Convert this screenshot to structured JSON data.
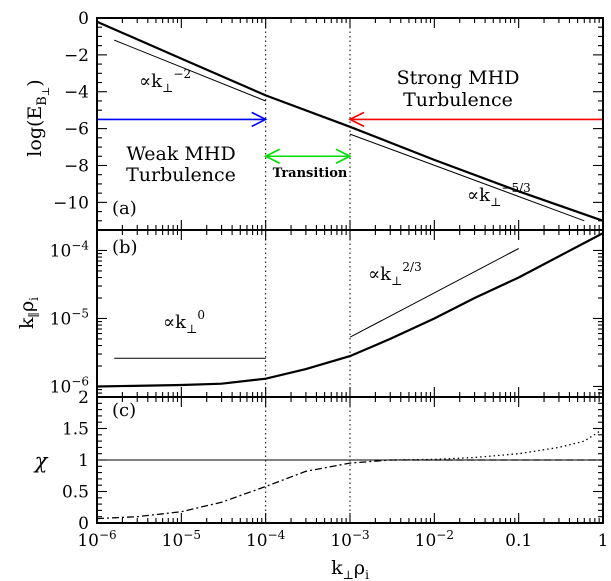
{
  "chart_data": [
    {
      "panel": "(a)",
      "type": "line",
      "ylabel": "log(E_B⊥)",
      "xscale": "log",
      "xlim": [
        1e-06,
        1
      ],
      "ylim": [
        -11.5,
        0
      ],
      "yticks": [
        -10,
        -8,
        -6,
        -4,
        -2,
        0
      ],
      "series": [
        {
          "style": "solid-thick",
          "x": [
            1e-06,
            1e-05,
            0.0001,
            0.001,
            0.01,
            0.1,
            1
          ],
          "y": [
            -0.2,
            -2.2,
            -4.2,
            -5.9,
            -7.7,
            -9.4,
            -11.0
          ]
        },
        {
          "style": "thin-reference",
          "x": [
            1.6e-06,
            0.0001
          ],
          "y": [
            -1.2,
            -4.5
          ]
        },
        {
          "style": "thin-reference",
          "x": [
            0.001,
            0.6
          ],
          "y": [
            -6.3,
            -11.0
          ]
        }
      ],
      "vlines": [
        0.0001,
        0.001
      ],
      "annotations": [
        {
          "id": "k2",
          "prefix": "∝k",
          "sub": "⊥",
          "sup": "−2"
        },
        {
          "id": "k53",
          "prefix": "∝k",
          "sub": "⊥",
          "sup": "−5/3"
        },
        {
          "id": "strong1",
          "text": "Strong MHD",
          "color": "#ff0000"
        },
        {
          "id": "strong2",
          "text": "Turbulence",
          "color": "#ff0000"
        },
        {
          "id": "weak1",
          "text": "Weak MHD",
          "color": "#0000ff"
        },
        {
          "id": "weak2",
          "text": "Turbulence",
          "color": "#0000ff"
        },
        {
          "id": "trans",
          "text": "Transition",
          "color": "#00dd00"
        }
      ],
      "arrows": [
        {
          "color": "#0000ff",
          "x": [
            1e-06,
            0.0001
          ],
          "y": -5.5,
          "head": "right"
        },
        {
          "color": "#ff0000",
          "x": [
            1,
            0.001
          ],
          "y": -5.5,
          "head": "left"
        },
        {
          "color": "#00dd00",
          "x": [
            0.0001,
            0.001
          ],
          "y": -7.5,
          "head": "both"
        }
      ]
    },
    {
      "panel": "(b)",
      "type": "line",
      "ylabel": "k∥ρi",
      "xscale": "log",
      "yscale": "log",
      "xlim": [
        1e-06,
        1
      ],
      "ylim": [
        7e-07,
        0.0002
      ],
      "yticks": [
        "10^-6",
        "10^-5",
        "10^-4"
      ],
      "series": [
        {
          "style": "solid-thick",
          "x": [
            1e-06,
            1e-05,
            3e-05,
            0.0001,
            0.0003,
            0.001,
            0.003,
            0.01,
            0.03,
            0.1,
            1
          ],
          "y": [
            1e-06,
            1.05e-06,
            1.1e-06,
            1.3e-06,
            1.8e-06,
            2.8e-06,
            5e-06,
            1e-05,
            2e-05,
            4e-05,
            0.00018
          ]
        },
        {
          "style": "thin-reference",
          "x": [
            1.6e-06,
            0.0001
          ],
          "y": [
            2.6e-06,
            2.6e-06
          ]
        },
        {
          "style": "thin-reference",
          "x": [
            0.001,
            0.1
          ],
          "y": [
            5.3e-06,
            0.000107
          ]
        }
      ],
      "vlines": [
        0.0001,
        0.001
      ],
      "annotations": [
        {
          "id": "k0",
          "prefix": "∝k",
          "sub": "⊥",
          "sup": "0"
        },
        {
          "id": "k23",
          "prefix": "∝k",
          "sub": "⊥",
          "sup": "2/3"
        }
      ]
    },
    {
      "panel": "(c)",
      "type": "line",
      "ylabel": "χ",
      "xlabel": "k⊥ρi",
      "xscale": "log",
      "xlim": [
        1e-06,
        1
      ],
      "ylim": [
        0,
        2
      ],
      "yticks": [
        0,
        0.5,
        1,
        1.5,
        2
      ],
      "xticks": [
        "10^-6",
        "10^-5",
        "10^-4",
        "10^-3",
        "10^-2",
        "0.1",
        "1"
      ],
      "series": [
        {
          "style": "dash-dot",
          "x": [
            1e-06,
            3e-06,
            1e-05,
            3e-05,
            0.0001,
            0.0003,
            0.001,
            0.003
          ],
          "y": [
            0.07,
            0.1,
            0.18,
            0.33,
            0.58,
            0.82,
            0.95,
            1.0
          ]
        },
        {
          "style": "dashed",
          "x": [
            0.003,
            0.01,
            0.1,
            1
          ],
          "y": [
            1.0,
            1.0,
            1.0,
            1.0
          ]
        },
        {
          "style": "dotted",
          "x": [
            0.003,
            0.01,
            0.03,
            0.1,
            0.3,
            0.6,
            0.9
          ],
          "y": [
            1.0,
            1.01,
            1.04,
            1.1,
            1.2,
            1.3,
            1.45
          ]
        },
        {
          "style": "thin-reference",
          "x": [
            1e-06,
            1
          ],
          "y": [
            1,
            1
          ]
        }
      ],
      "vlines": [
        0.0001,
        0.001
      ]
    }
  ]
}
